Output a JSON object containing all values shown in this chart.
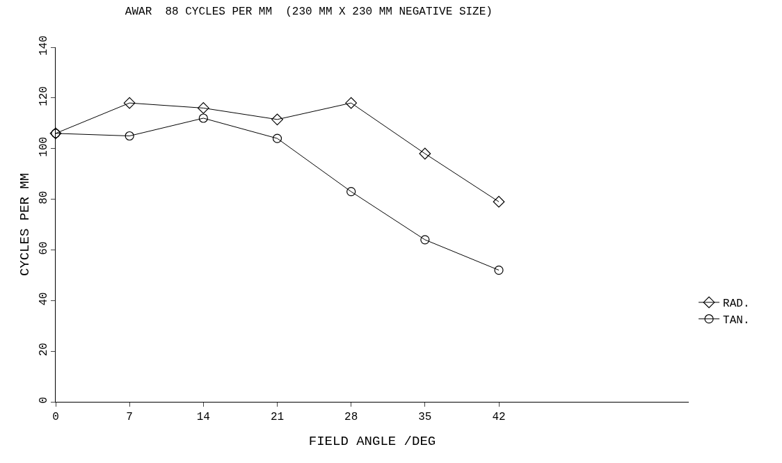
{
  "chart_data": {
    "type": "line",
    "title": "AWAR  88 CYCLES PER MM  (230 MM X 230 MM NEGATIVE SIZE)",
    "xlabel": "FIELD ANGLE /DEG",
    "ylabel": "CYCLES PER MM",
    "x": [
      0,
      7,
      14,
      21,
      28,
      35,
      42
    ],
    "series": [
      {
        "name": "RAD.",
        "color": "#000000",
        "marker": "diamond",
        "values": [
          106,
          118,
          116,
          111.5,
          118,
          98,
          79
        ]
      },
      {
        "name": "TAN.",
        "color": "#000000",
        "marker": "circle",
        "values": [
          106,
          105,
          112,
          104,
          83,
          64,
          52
        ]
      }
    ],
    "xlim": [
      0,
      60
    ],
    "xticks": [
      0,
      7,
      14,
      21,
      28,
      35,
      42
    ],
    "ylim": [
      0,
      140
    ],
    "yticks": [
      0,
      20,
      40,
      60,
      80,
      100,
      120,
      140
    ],
    "legend": "bottom right",
    "line_style": "solid"
  }
}
